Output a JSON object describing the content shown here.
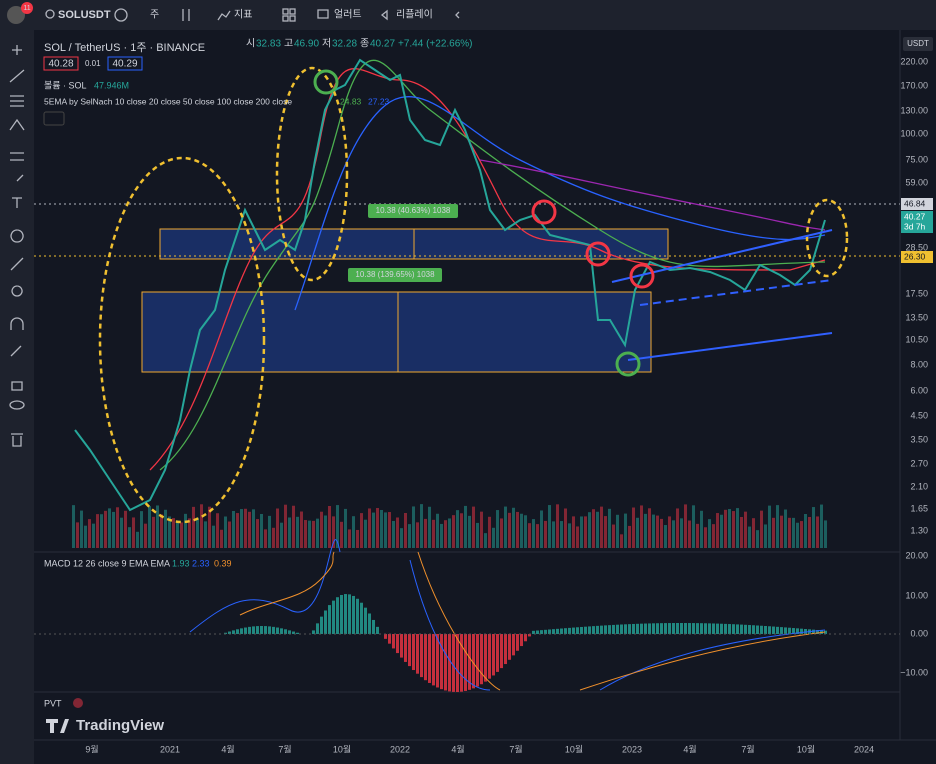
{
  "toolbar": {
    "symbol": "SOLUSDT",
    "badge": "11",
    "interval": "주",
    "indicators": "지표",
    "alerts": "얼러트",
    "replay": "리플레이"
  },
  "legend": {
    "title": "SOL / TetherUS · 1주 · BINANCE",
    "o_label": "시",
    "o": "32.83",
    "h_label": "고",
    "h": "46.90",
    "l_label": "저",
    "l": "32.28",
    "c_label": "종",
    "c": "40.27",
    "change": "+7.44 (+22.66%)",
    "bid": "40.28",
    "spread": "0.01",
    "ask": "40.29",
    "volume_label": "볼륨 · SOL",
    "volume": "47.946M",
    "ema_label": "5EMA by SelNach 10 close 20 close 50 close 100 close 200 close",
    "ema_values": [
      "24.83",
      "27.23"
    ]
  },
  "currency": "USDT",
  "price_axis": [
    "220.00",
    "170.00",
    "130.00",
    "100.00",
    "75.00",
    "59.00",
    "28.50",
    "17.50",
    "13.50",
    "10.50",
    "8.00",
    "6.00",
    "4.50",
    "3.50",
    "2.70",
    "2.10",
    "1.65",
    "1.30"
  ],
  "price_tags": {
    "high": "46.84",
    "last": "40.27",
    "countdown": "3d 7h",
    "support": "26.30"
  },
  "measures": [
    "10.38 (40.63%) 1038",
    "10.38 (139.65%) 1038"
  ],
  "macd": {
    "label": "MACD 12 26 close 9 EMA EMA",
    "values": [
      "1.93",
      "2.33",
      "0.39"
    ],
    "axis": [
      "20.00",
      "10.00",
      "0.00",
      "−10.00"
    ]
  },
  "pvt": "PVT",
  "brand": "TradingView",
  "time_axis": [
    "9월",
    "2021",
    "4월",
    "7월",
    "10월",
    "2022",
    "4월",
    "7월",
    "10월",
    "2023",
    "4월",
    "7월",
    "10월",
    "2024"
  ]
}
